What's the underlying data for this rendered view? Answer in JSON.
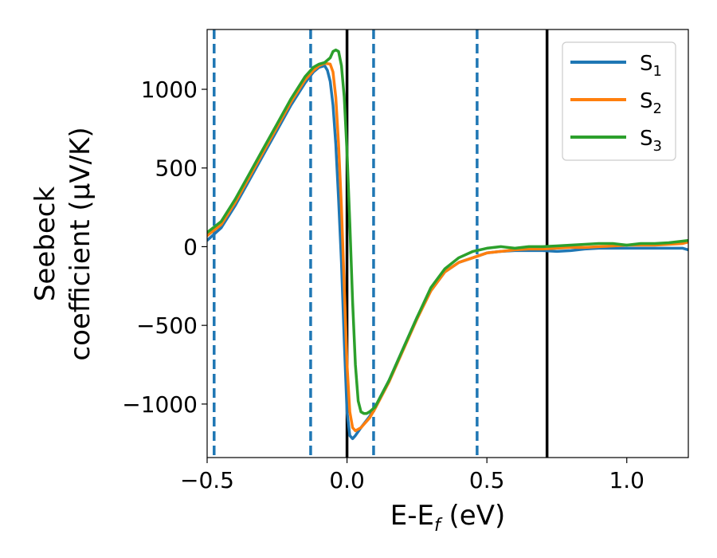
{
  "chart_data": {
    "type": "line",
    "xlabel": "E-E",
    "xlabel_sub": "f",
    "xlabel_unit": " (eV)",
    "ylabel_line1": "Seebeck",
    "ylabel_line2": "coefficient  (μV/K)",
    "xlim": [
      -0.5,
      1.22
    ],
    "ylim": [
      -1340,
      1380
    ],
    "x_ticks": [
      -0.5,
      0.0,
      0.5,
      1.0
    ],
    "x_tick_labels": [
      "−0.5",
      "0.0",
      "0.5",
      "1.0"
    ],
    "y_ticks": [
      -1000,
      -500,
      0,
      500,
      1000
    ],
    "y_tick_labels": [
      "−1000",
      "−500",
      "0",
      "500",
      "1000"
    ],
    "grid": false,
    "legend_position": "top-right",
    "vlines_dashed": [
      -0.475,
      -0.13,
      0.095,
      0.465
    ],
    "vlines_solid": [
      0.0,
      0.715
    ],
    "vline_dashed_color": "#1f77b4",
    "vline_solid_color": "#000000",
    "series": [
      {
        "name": "S",
        "subscript": "1",
        "color": "#1f77b4",
        "x": [
          -0.5,
          -0.45,
          -0.4,
          -0.35,
          -0.3,
          -0.25,
          -0.2,
          -0.15,
          -0.12,
          -0.1,
          -0.08,
          -0.07,
          -0.06,
          -0.05,
          -0.04,
          -0.03,
          -0.02,
          -0.01,
          0.0,
          0.01,
          0.02,
          0.03,
          0.05,
          0.08,
          0.1,
          0.15,
          0.2,
          0.25,
          0.3,
          0.35,
          0.4,
          0.45,
          0.5,
          0.55,
          0.6,
          0.65,
          0.7,
          0.75,
          0.8,
          0.85,
          0.9,
          0.95,
          1.0,
          1.05,
          1.1,
          1.15,
          1.2,
          1.22
        ],
        "y": [
          40,
          120,
          260,
          420,
          580,
          740,
          900,
          1040,
          1110,
          1140,
          1150,
          1120,
          1050,
          900,
          650,
          300,
          -100,
          -600,
          -1050,
          -1200,
          -1220,
          -1200,
          -1150,
          -1080,
          -1020,
          -850,
          -650,
          -450,
          -280,
          -160,
          -100,
          -70,
          -40,
          -30,
          -25,
          -25,
          -25,
          -30,
          -25,
          -15,
          -10,
          -10,
          -10,
          -10,
          -10,
          -10,
          -10,
          -20
        ]
      },
      {
        "name": "S",
        "subscript": "2",
        "color": "#ff7f0e",
        "x": [
          -0.5,
          -0.45,
          -0.4,
          -0.35,
          -0.3,
          -0.25,
          -0.2,
          -0.15,
          -0.12,
          -0.1,
          -0.08,
          -0.06,
          -0.05,
          -0.04,
          -0.03,
          -0.02,
          -0.01,
          0.0,
          0.01,
          0.02,
          0.03,
          0.05,
          0.08,
          0.1,
          0.15,
          0.2,
          0.25,
          0.3,
          0.35,
          0.4,
          0.45,
          0.5,
          0.55,
          0.6,
          0.65,
          0.7,
          0.75,
          0.8,
          0.85,
          0.9,
          0.95,
          1.0,
          1.05,
          1.1,
          1.15,
          1.2,
          1.22
        ],
        "y": [
          70,
          140,
          280,
          440,
          600,
          760,
          920,
          1060,
          1120,
          1150,
          1165,
          1160,
          1110,
          950,
          650,
          250,
          -250,
          -750,
          -1050,
          -1150,
          -1170,
          -1150,
          -1090,
          -1030,
          -860,
          -660,
          -460,
          -280,
          -160,
          -100,
          -70,
          -40,
          -30,
          -20,
          -15,
          -15,
          -10,
          -5,
          -5,
          0,
          5,
          10,
          10,
          10,
          15,
          20,
          30
        ]
      },
      {
        "name": "S",
        "subscript": "3",
        "color": "#2ca02c",
        "x": [
          -0.5,
          -0.45,
          -0.4,
          -0.35,
          -0.3,
          -0.25,
          -0.2,
          -0.15,
          -0.12,
          -0.1,
          -0.08,
          -0.06,
          -0.05,
          -0.04,
          -0.03,
          -0.02,
          -0.01,
          0.0,
          0.01,
          0.02,
          0.03,
          0.04,
          0.05,
          0.06,
          0.07,
          0.08,
          0.1,
          0.15,
          0.2,
          0.25,
          0.3,
          0.35,
          0.4,
          0.45,
          0.5,
          0.55,
          0.6,
          0.65,
          0.7,
          0.75,
          0.8,
          0.85,
          0.9,
          0.95,
          1.0,
          1.05,
          1.1,
          1.15,
          1.2,
          1.22
        ],
        "y": [
          90,
          160,
          300,
          460,
          620,
          780,
          940,
          1080,
          1140,
          1160,
          1170,
          1200,
          1240,
          1250,
          1240,
          1150,
          950,
          600,
          150,
          -350,
          -750,
          -980,
          -1050,
          -1060,
          -1060,
          -1050,
          -1020,
          -850,
          -650,
          -450,
          -260,
          -140,
          -70,
          -30,
          -10,
          0,
          -10,
          0,
          0,
          5,
          10,
          15,
          20,
          20,
          10,
          20,
          20,
          25,
          35,
          40
        ]
      }
    ]
  }
}
